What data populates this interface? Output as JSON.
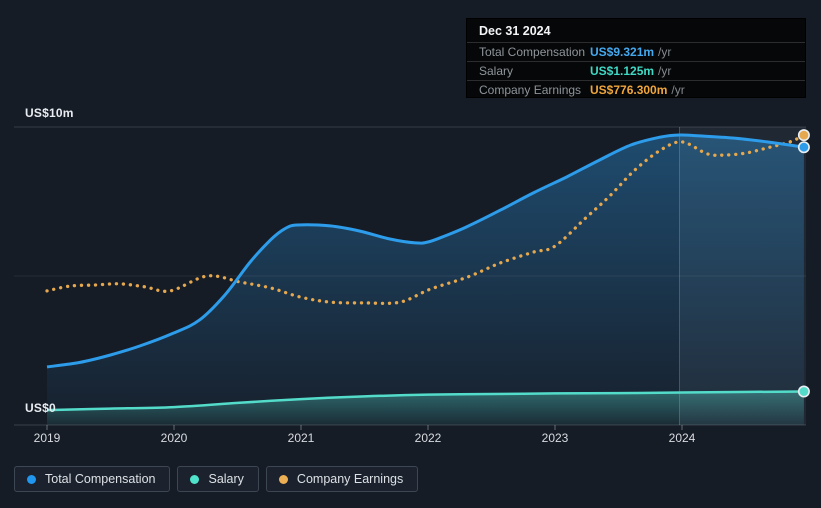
{
  "page": {
    "background": "#161c26"
  },
  "tooltip": {
    "date": "Dec 31 2024",
    "rows": [
      {
        "label": "Total Compensation",
        "value": "US$9.321m",
        "suffix": "/yr",
        "color": "#45a9ef"
      },
      {
        "label": "Salary",
        "value": "US$1.125m",
        "suffix": "/yr",
        "color": "#3fd9c5"
      },
      {
        "label": "Company Earnings",
        "value": "US$776.300m",
        "suffix": "/yr",
        "color": "#f0a63c"
      }
    ]
  },
  "legend": {
    "items": [
      {
        "label": "Total Compensation",
        "color": "#2196ee"
      },
      {
        "label": "Salary",
        "color": "#4fe3cb"
      },
      {
        "label": "Company Earnings",
        "color": "#ecaf54"
      }
    ]
  },
  "chart_data": {
    "type": "area",
    "x_axis": {
      "labels": [
        "2019",
        "2020",
        "2021",
        "2022",
        "2023",
        "2024"
      ],
      "tick_years": [
        2019,
        2020,
        2021,
        2022,
        2023,
        2024
      ],
      "range": [
        2018.74,
        2024.98
      ]
    },
    "y_axis": {
      "top_label": "US$10m",
      "zero_label": "US$0",
      "ylim": [
        0,
        10
      ],
      "unit": "US$ millions per year"
    },
    "grid": {
      "h_values": [
        0,
        5,
        10
      ]
    },
    "highlight_band": {
      "from_year": 2023.98,
      "to_year": 2024.98
    },
    "series": [
      {
        "name": "Total Compensation",
        "style": "area",
        "color": "#2d9cea",
        "ylim": [
          0,
          10
        ],
        "end_marker": true,
        "points": [
          [
            2019.0,
            1.95
          ],
          [
            2019.26,
            2.1
          ],
          [
            2019.5,
            2.35
          ],
          [
            2019.73,
            2.65
          ],
          [
            2020.0,
            3.09
          ],
          [
            2020.2,
            3.52
          ],
          [
            2020.4,
            4.36
          ],
          [
            2020.6,
            5.47
          ],
          [
            2020.76,
            6.21
          ],
          [
            2020.87,
            6.58
          ],
          [
            2020.97,
            6.71
          ],
          [
            2021.23,
            6.68
          ],
          [
            2021.46,
            6.51
          ],
          [
            2021.7,
            6.24
          ],
          [
            2021.9,
            6.11
          ],
          [
            2022.0,
            6.14
          ],
          [
            2022.13,
            6.34
          ],
          [
            2022.3,
            6.64
          ],
          [
            2022.57,
            7.21
          ],
          [
            2022.83,
            7.79
          ],
          [
            2023.09,
            8.32
          ],
          [
            2023.35,
            8.89
          ],
          [
            2023.6,
            9.4
          ],
          [
            2023.83,
            9.66
          ],
          [
            2023.98,
            9.73
          ],
          [
            2024.14,
            9.7
          ],
          [
            2024.4,
            9.63
          ],
          [
            2024.67,
            9.5
          ],
          [
            2024.96,
            9.321
          ]
        ]
      },
      {
        "name": "Salary",
        "style": "area",
        "color": "#54dcca",
        "ylim": [
          0,
          10
        ],
        "end_marker": true,
        "points": [
          [
            2019.0,
            0.5
          ],
          [
            2019.5,
            0.55
          ],
          [
            2020.0,
            0.6
          ],
          [
            2020.5,
            0.74
          ],
          [
            2021.0,
            0.87
          ],
          [
            2021.5,
            0.96
          ],
          [
            2022.0,
            1.02
          ],
          [
            2022.5,
            1.04
          ],
          [
            2023.0,
            1.06
          ],
          [
            2023.5,
            1.07
          ],
          [
            2024.0,
            1.09
          ],
          [
            2024.96,
            1.125
          ]
        ]
      },
      {
        "name": "Company Earnings",
        "style": "dotted",
        "color": "#e6a84e",
        "ylim": [
          0,
          798
        ],
        "end_marker": true,
        "points": [
          [
            2019.0,
            359
          ],
          [
            2019.18,
            372
          ],
          [
            2019.38,
            375
          ],
          [
            2019.57,
            378
          ],
          [
            2019.77,
            370
          ],
          [
            2019.97,
            359
          ],
          [
            2020.26,
            399
          ],
          [
            2020.52,
            383
          ],
          [
            2020.76,
            367
          ],
          [
            2020.99,
            343
          ],
          [
            2021.23,
            329
          ],
          [
            2021.5,
            327
          ],
          [
            2021.78,
            329
          ],
          [
            2022.02,
            364
          ],
          [
            2022.31,
            396
          ],
          [
            2022.57,
            434
          ],
          [
            2022.83,
            463
          ],
          [
            2023.0,
            479
          ],
          [
            2023.25,
            557
          ],
          [
            2023.43,
            613
          ],
          [
            2023.63,
            683
          ],
          [
            2023.83,
            736
          ],
          [
            2024.0,
            758
          ],
          [
            2024.2,
            726
          ],
          [
            2024.34,
            723
          ],
          [
            2024.5,
            728
          ],
          [
            2024.67,
            742
          ],
          [
            2024.85,
            758
          ],
          [
            2024.96,
            776.3
          ]
        ]
      }
    ]
  }
}
